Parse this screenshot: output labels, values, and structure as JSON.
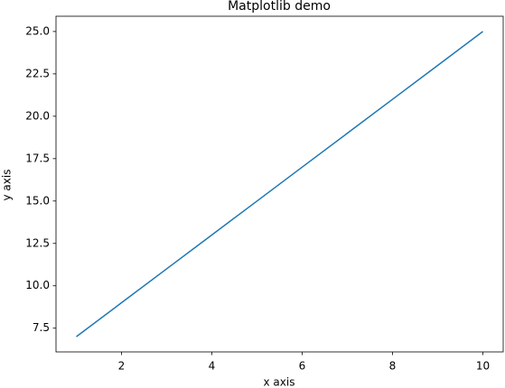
{
  "chart_data": {
    "type": "line",
    "title": "Matplotlib demo",
    "x_label": "x axis",
    "y_label": "y axis",
    "x": [
      1,
      2,
      3,
      4,
      5,
      6,
      7,
      8,
      9,
      10
    ],
    "series": [
      {
        "color": "#1f77b4",
        "values": [
          7,
          9,
          11,
          13,
          15,
          17,
          19,
          21,
          23,
          25
        ]
      }
    ],
    "xlim": [
      0.55,
      10.45
    ],
    "xticks": [
      2,
      4,
      6,
      8,
      10
    ],
    "ylim": [
      6.1,
      25.9
    ],
    "yticks": [
      7.5,
      {
        "value": 10,
        "label": "10.0"
      },
      12.5,
      {
        "value": 15,
        "label": "15.0"
      },
      17.5,
      {
        "value": 20,
        "label": "20.0"
      },
      22.5,
      {
        "value": 25,
        "label": "25.0"
      }
    ],
    "grid": false
  }
}
